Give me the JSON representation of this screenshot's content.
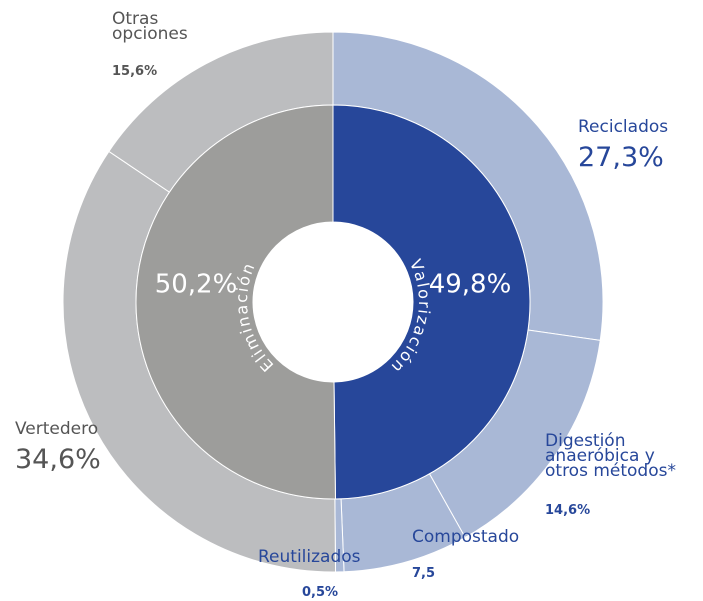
{
  "chart_data": {
    "type": "nested_donut",
    "inner": {
      "categories": [
        "Valorización",
        "Eliminación"
      ],
      "values": [
        49.8,
        50.2
      ],
      "value_labels": [
        "49,8%",
        "50,2%"
      ],
      "colors": [
        "#27479a",
        "#9d9d9b"
      ]
    },
    "outer": {
      "categories": [
        "Reciclados",
        "Digestión anaeróbica y otros métodos*",
        "Compostado",
        "Reutilizados",
        "Vertedero",
        "Otras opciones"
      ],
      "values": [
        27.3,
        14.6,
        7.5,
        0.5,
        34.6,
        15.6
      ],
      "value_labels": [
        "27,3%",
        "14,6%",
        "7,5",
        "0,5%",
        "34,6%",
        "15,6%"
      ],
      "colors": [
        "#a9b8d6",
        "#a9b8d6",
        "#a9b8d6",
        "#a9b8d6",
        "#bcbdbf",
        "#bcbdbf"
      ]
    }
  }
}
